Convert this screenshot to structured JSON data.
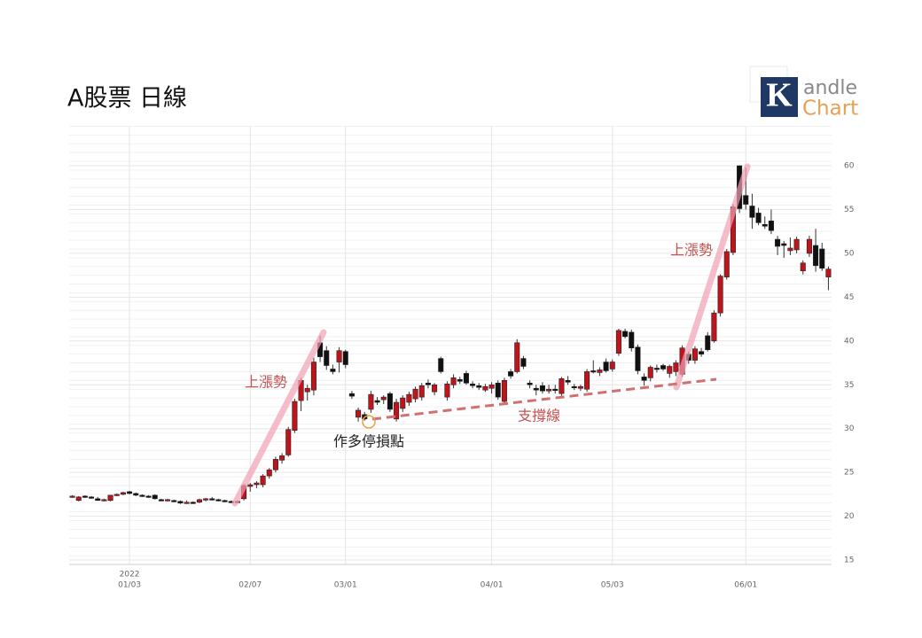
{
  "chart_data": {
    "type": "candlestick",
    "title": "A股票 日線",
    "logo": {
      "letter": "K",
      "line1": "andle",
      "line2": "Chart"
    },
    "annotations": [
      "上漲勢",
      "上漲勢",
      "支撐線",
      "作多停損點"
    ],
    "year": "2022",
    "xlim": [
      -0.5,
      119.5
    ],
    "xticks": [
      {
        "value": 9,
        "label": "01/03"
      },
      {
        "value": 28,
        "label": "02/07"
      },
      {
        "value": 43,
        "label": "03/01"
      },
      {
        "value": 66,
        "label": "04/01"
      },
      {
        "value": 85,
        "label": "05/03"
      },
      {
        "value": 106,
        "label": "06/01"
      }
    ],
    "ylim": [
      14.5,
      64.5
    ],
    "yticks": [
      15,
      20,
      25,
      30,
      35,
      40,
      45,
      50,
      55,
      60
    ],
    "grid": true,
    "up_color": "#c0141c",
    "down_color": "#111111",
    "ohlc": [
      [
        22.2,
        22.4,
        22.1,
        22.3
      ],
      [
        21.8,
        22.3,
        21.7,
        22.2
      ],
      [
        22.3,
        22.4,
        22.1,
        22.2
      ],
      [
        22.2,
        22.3,
        22.0,
        22.1
      ],
      [
        22.0,
        22.2,
        21.8,
        21.8
      ],
      [
        21.8,
        22.0,
        21.7,
        21.9
      ],
      [
        21.8,
        22.4,
        21.7,
        22.4
      ],
      [
        22.4,
        22.6,
        22.3,
        22.5
      ],
      [
        22.5,
        22.8,
        22.4,
        22.7
      ],
      [
        22.8,
        22.9,
        22.5,
        22.6
      ],
      [
        22.6,
        22.7,
        22.3,
        22.4
      ],
      [
        22.4,
        22.5,
        22.2,
        22.3
      ],
      [
        22.3,
        22.4,
        22.1,
        22.2
      ],
      [
        22.4,
        22.5,
        21.9,
        22.0
      ],
      [
        21.9,
        22.0,
        21.7,
        21.8
      ],
      [
        21.8,
        22.0,
        21.7,
        21.9
      ],
      [
        21.8,
        21.9,
        21.6,
        21.7
      ],
      [
        21.7,
        21.8,
        21.4,
        21.5
      ],
      [
        21.5,
        21.8,
        21.4,
        21.6
      ],
      [
        21.6,
        21.7,
        21.4,
        21.5
      ],
      [
        21.6,
        22.0,
        21.5,
        21.9
      ],
      [
        21.9,
        22.1,
        21.7,
        22.0
      ],
      [
        22.0,
        22.2,
        21.8,
        21.9
      ],
      [
        21.9,
        22.0,
        21.7,
        21.8
      ],
      [
        21.8,
        21.9,
        21.6,
        21.7
      ],
      [
        21.7,
        21.8,
        21.5,
        21.6
      ],
      [
        21.6,
        21.8,
        21.5,
        21.7
      ],
      [
        22.0,
        23.7,
        21.8,
        23.5
      ],
      [
        23.4,
        23.8,
        22.8,
        23.6
      ],
      [
        23.6,
        24.0,
        23.2,
        23.8
      ],
      [
        23.6,
        24.8,
        23.3,
        24.6
      ],
      [
        24.6,
        25.5,
        24.3,
        25.3
      ],
      [
        25.3,
        26.8,
        25.0,
        26.5
      ],
      [
        26.4,
        27.2,
        26.0,
        26.9
      ],
      [
        27.0,
        30.2,
        26.8,
        29.9
      ],
      [
        29.8,
        33.4,
        29.5,
        33.1
      ],
      [
        33.2,
        35.8,
        32.0,
        35.5
      ],
      [
        34.2,
        35.0,
        33.2,
        34.6
      ],
      [
        34.4,
        38.1,
        33.8,
        37.6
      ],
      [
        39.8,
        40.6,
        37.6,
        38.2
      ],
      [
        38.9,
        39.4,
        36.7,
        37.2
      ],
      [
        36.8,
        37.3,
        36.2,
        36.5
      ],
      [
        37.6,
        39.3,
        36.4,
        38.9
      ],
      [
        38.8,
        39.0,
        36.9,
        37.3
      ],
      [
        34.0,
        34.3,
        33.4,
        33.7
      ],
      [
        31.3,
        32.4,
        30.8,
        32.1
      ],
      [
        31.6,
        31.9,
        30.9,
        31.1
      ],
      [
        32.2,
        34.3,
        31.8,
        33.9
      ],
      [
        33.2,
        33.6,
        32.7,
        33.0
      ],
      [
        33.3,
        33.8,
        32.8,
        33.6
      ],
      [
        34.0,
        34.2,
        31.9,
        32.2
      ],
      [
        31.1,
        33.4,
        30.8,
        33.0
      ],
      [
        32.3,
        33.8,
        31.9,
        33.5
      ],
      [
        33.0,
        34.2,
        32.6,
        33.9
      ],
      [
        33.4,
        34.8,
        33.0,
        34.5
      ],
      [
        33.6,
        35.2,
        33.2,
        34.9
      ],
      [
        35.2,
        35.6,
        34.6,
        35.0
      ],
      [
        34.2,
        35.2,
        33.8,
        35.0
      ],
      [
        38.0,
        38.2,
        36.3,
        36.5
      ],
      [
        33.6,
        35.4,
        33.2,
        35.1
      ],
      [
        35.0,
        36.2,
        34.6,
        35.8
      ],
      [
        35.6,
        35.9,
        35.1,
        35.4
      ],
      [
        36.3,
        36.6,
        35.0,
        35.2
      ],
      [
        35.1,
        35.4,
        34.6,
        34.9
      ],
      [
        34.9,
        35.2,
        34.4,
        34.7
      ],
      [
        34.4,
        35.1,
        34.2,
        34.8
      ],
      [
        34.6,
        35.3,
        34.0,
        35.0
      ],
      [
        35.2,
        35.5,
        33.3,
        33.6
      ],
      [
        33.1,
        35.8,
        32.8,
        35.5
      ],
      [
        36.5,
        36.8,
        35.7,
        36.0
      ],
      [
        36.5,
        40.2,
        36.3,
        39.8
      ],
      [
        38.0,
        38.3,
        36.8,
        37.1
      ],
      [
        35.2,
        35.5,
        34.6,
        35.0
      ],
      [
        34.6,
        35.0,
        33.8,
        34.4
      ],
      [
        34.9,
        35.3,
        34.0,
        34.3
      ],
      [
        34.3,
        35.0,
        34.0,
        34.5
      ],
      [
        34.5,
        35.0,
        34.0,
        34.4
      ],
      [
        34.0,
        35.9,
        33.6,
        35.7
      ],
      [
        35.5,
        36.0,
        35.0,
        35.3
      ],
      [
        34.8,
        35.1,
        34.4,
        34.7
      ],
      [
        34.6,
        35.0,
        34.3,
        34.8
      ],
      [
        34.5,
        36.8,
        34.2,
        36.5
      ],
      [
        36.6,
        37.8,
        36.3,
        36.5
      ],
      [
        36.4,
        37.0,
        36.0,
        36.7
      ],
      [
        37.6,
        38.0,
        36.4,
        36.6
      ],
      [
        36.8,
        37.9,
        36.5,
        37.6
      ],
      [
        38.6,
        41.4,
        38.3,
        41.2
      ],
      [
        41.1,
        41.4,
        40.3,
        40.5
      ],
      [
        41.0,
        41.3,
        38.8,
        39.2
      ],
      [
        39.3,
        39.6,
        36.2,
        36.6
      ],
      [
        35.9,
        36.3,
        34.9,
        35.5
      ],
      [
        35.8,
        37.2,
        35.4,
        37.0
      ],
      [
        36.9,
        37.3,
        36.4,
        36.8
      ],
      [
        37.2,
        37.4,
        36.6,
        36.8
      ],
      [
        36.3,
        37.3,
        35.8,
        37.1
      ],
      [
        36.5,
        37.8,
        36.0,
        37.5
      ],
      [
        36.2,
        39.5,
        35.9,
        39.2
      ],
      [
        38.5,
        38.8,
        37.4,
        37.8
      ],
      [
        37.8,
        39.4,
        37.4,
        39.1
      ],
      [
        38.8,
        39.2,
        38.2,
        38.5
      ],
      [
        40.6,
        41.0,
        38.8,
        39.0
      ],
      [
        40.0,
        43.5,
        39.8,
        43.2
      ],
      [
        43.2,
        47.6,
        42.8,
        47.4
      ],
      [
        47.3,
        50.5,
        47.0,
        50.2
      ],
      [
        50.1,
        55.6,
        49.8,
        55.3
      ],
      [
        60.0,
        60.0,
        54.6,
        55.1
      ],
      [
        56.6,
        59.8,
        55.0,
        55.6
      ],
      [
        55.4,
        56.8,
        52.8,
        54.1
      ],
      [
        54.6,
        55.2,
        53.2,
        53.5
      ],
      [
        53.3,
        54.2,
        52.8,
        53.1
      ],
      [
        53.7,
        55.0,
        52.2,
        52.6
      ],
      [
        51.6,
        52.0,
        49.8,
        50.8
      ],
      [
        51.1,
        51.4,
        49.5,
        50.9
      ],
      [
        50.3,
        51.8,
        49.8,
        50.6
      ],
      [
        50.4,
        51.9,
        50.0,
        51.6
      ],
      [
        48.0,
        49.2,
        47.6,
        48.9
      ],
      [
        50.0,
        52.0,
        49.6,
        51.6
      ],
      [
        50.9,
        52.8,
        47.9,
        48.6
      ],
      [
        50.5,
        51.2,
        48.0,
        48.3
      ],
      [
        47.3,
        48.5,
        45.8,
        48.2
      ]
    ]
  }
}
